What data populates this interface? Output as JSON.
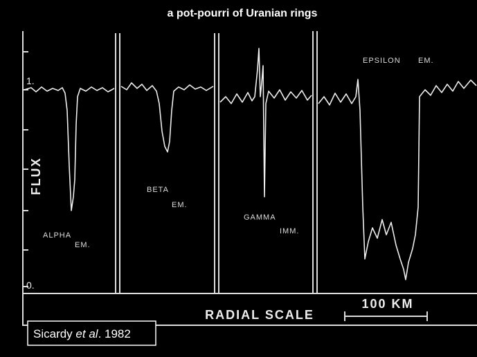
{
  "header": {
    "title": "a pot-pourri of Uranian rings"
  },
  "plot": {
    "y_axis": {
      "label": "FLUX",
      "top_label": "1.",
      "bottom_label": "0."
    },
    "x_axis": {
      "label": "RADIAL SCALE",
      "scale_label": "100 KM"
    },
    "panels": [
      {
        "name": "ALPHA",
        "note": "EM."
      },
      {
        "name": "BETA",
        "note": "EM."
      },
      {
        "name": "GAMMA",
        "note": "IMM."
      },
      {
        "name": "EPSILON",
        "note": "EM."
      }
    ]
  },
  "citation": {
    "author": "Sicardy ",
    "etal": "et al",
    "year": ". 1982"
  }
}
